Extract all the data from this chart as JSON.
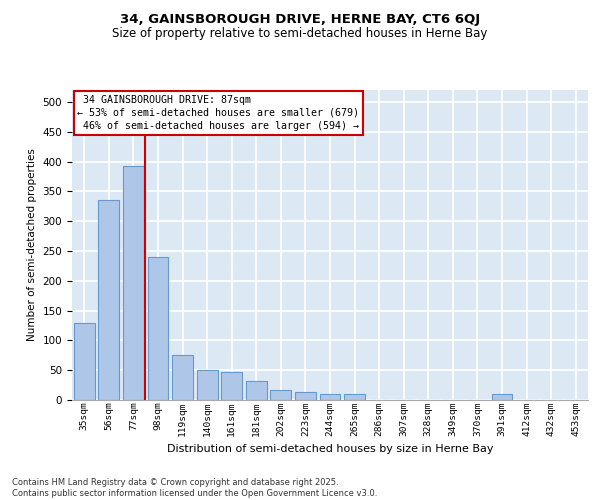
{
  "title_line1": "34, GAINSBOROUGH DRIVE, HERNE BAY, CT6 6QJ",
  "title_line2": "Size of property relative to semi-detached houses in Herne Bay",
  "xlabel": "Distribution of semi-detached houses by size in Herne Bay",
  "ylabel": "Number of semi-detached properties",
  "footnote": "Contains HM Land Registry data © Crown copyright and database right 2025.\nContains public sector information licensed under the Open Government Licence v3.0.",
  "bar_categories": [
    "35sqm",
    "56sqm",
    "77sqm",
    "98sqm",
    "119sqm",
    "140sqm",
    "161sqm",
    "181sqm",
    "202sqm",
    "223sqm",
    "244sqm",
    "265sqm",
    "286sqm",
    "307sqm",
    "328sqm",
    "349sqm",
    "370sqm",
    "391sqm",
    "412sqm",
    "432sqm",
    "453sqm"
  ],
  "bar_values": [
    130,
    335,
    393,
    240,
    75,
    50,
    47,
    32,
    17,
    14,
    10,
    10,
    0,
    0,
    0,
    0,
    0,
    10,
    0,
    0,
    0
  ],
  "bar_color": "#aec6e8",
  "bar_edge_color": "#6699cc",
  "background_color": "#dde8f5",
  "grid_color": "#ffffff",
  "subject_size": 87,
  "property_name": "34 GAINSBOROUGH DRIVE",
  "pct_smaller": 53,
  "count_smaller": 679,
  "pct_larger": 46,
  "count_larger": 594,
  "annotation_box_color": "#ffffff",
  "annotation_box_edge": "#cc0000",
  "vline_color": "#cc0000",
  "fig_background": "#ffffff",
  "ylim": [
    0,
    520
  ],
  "yticks": [
    0,
    50,
    100,
    150,
    200,
    250,
    300,
    350,
    400,
    450,
    500
  ]
}
